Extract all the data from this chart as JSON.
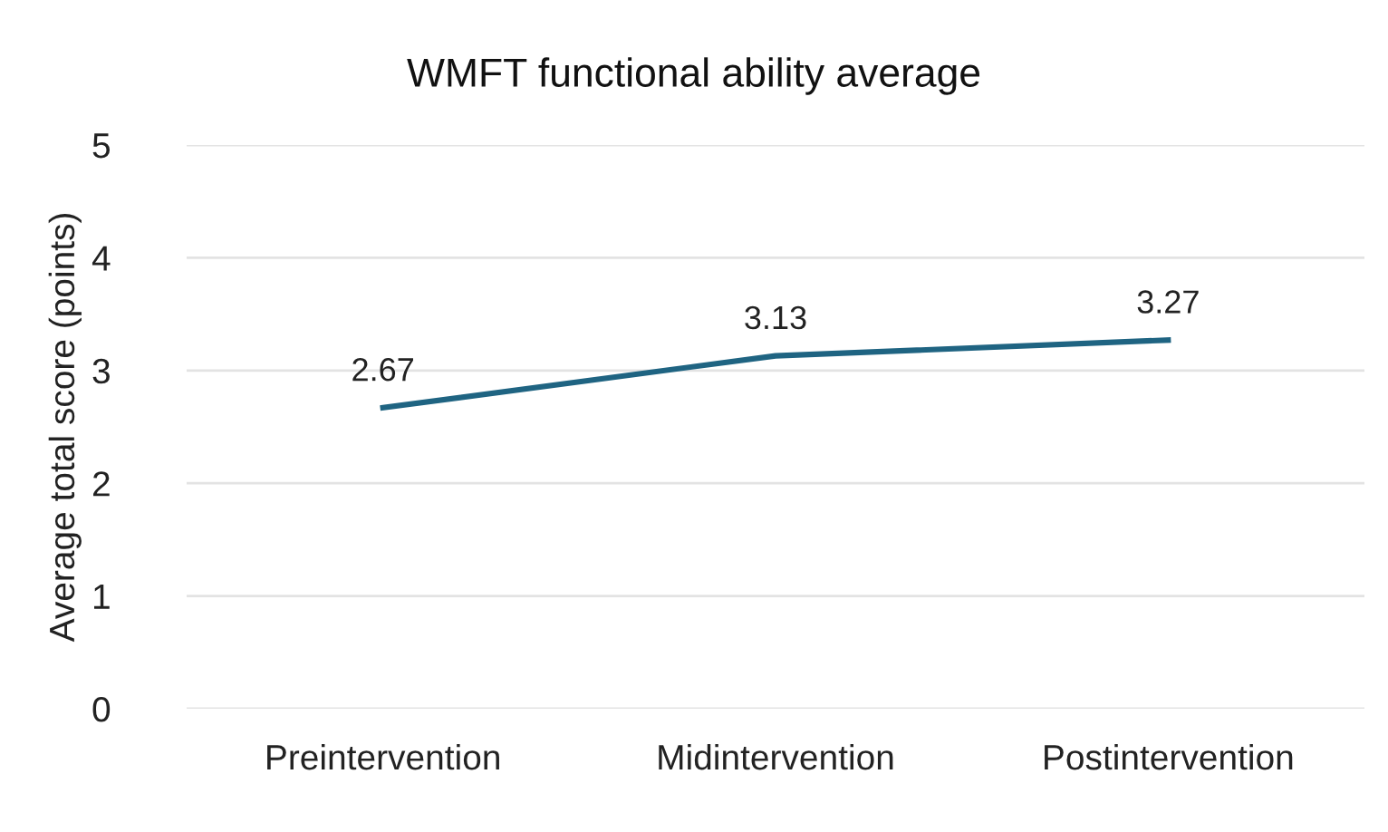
{
  "chart_data": {
    "type": "line",
    "title": "WMFT functional ability average",
    "ylabel": "Average total score (points)",
    "categories": [
      "Preintervention",
      "Midintervention",
      "Postintervention"
    ],
    "series": [
      {
        "color": "#1f6482",
        "values": [
          2.67,
          3.13,
          3.27
        ]
      }
    ],
    "ylim": [
      0,
      5
    ],
    "yticks": [
      0,
      1,
      2,
      3,
      4,
      5
    ],
    "grid": "y",
    "legend": false,
    "marker": "none",
    "line_style": "solid",
    "data_labels": true
  }
}
